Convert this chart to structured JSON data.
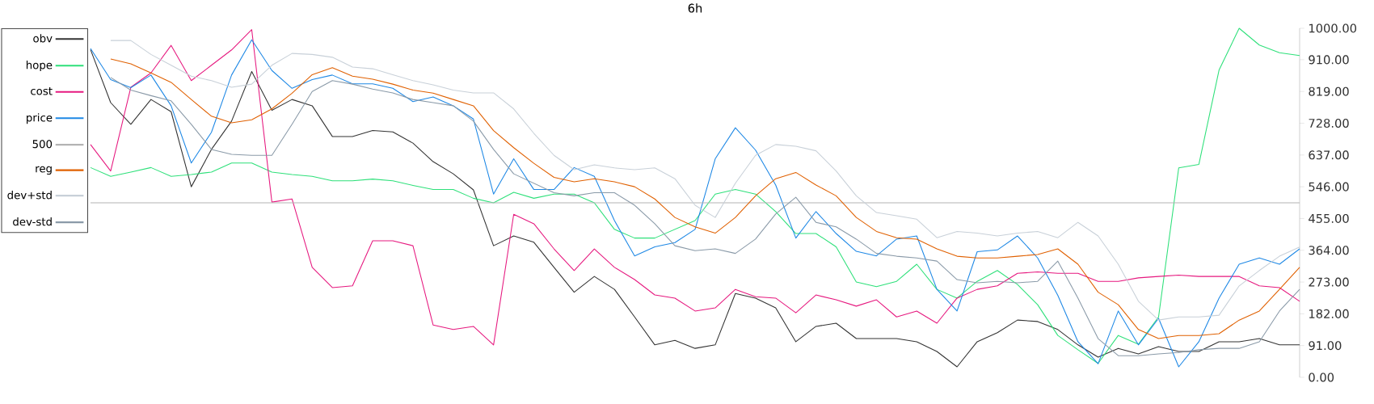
{
  "chart_data": {
    "type": "line",
    "title": "6h",
    "categories": [
      null,
      null,
      null,
      null,
      null,
      null,
      null,
      null,
      null,
      null,
      null,
      null,
      null,
      null,
      null,
      null,
      null,
      null,
      null,
      null,
      null,
      null,
      null,
      null,
      null,
      null,
      null,
      null,
      null,
      null,
      null,
      null,
      null,
      null,
      null,
      null,
      null,
      null,
      null,
      null,
      null,
      null,
      null,
      null,
      null,
      null,
      null,
      null,
      null,
      null,
      null,
      null,
      null,
      null,
      null,
      null,
      null,
      null,
      null,
      null,
      null
    ],
    "series": [
      {
        "name": "obv",
        "color": "#333333",
        "values": [
          939,
          787,
          725,
          796,
          761,
          546,
          653,
          734,
          876,
          765,
          796,
          778,
          690,
          690,
          707,
          703,
          671,
          618,
          583,
          537,
          377,
          405,
          387,
          315,
          244,
          289,
          252,
          173,
          93,
          106,
          83,
          93,
          240,
          227,
          199,
          102,
          146,
          155,
          111,
          111,
          111,
          102,
          74,
          30,
          102,
          128,
          164,
          160,
          137,
          93,
          58,
          83,
          67,
          88,
          74,
          74,
          102,
          102,
          111,
          93,
          93
        ]
      },
      {
        "name": "hope",
        "color": "#2ee07a",
        "values": [
          601,
          576,
          588,
          601,
          576,
          581,
          588,
          614,
          614,
          588,
          581,
          576,
          563,
          563,
          568,
          563,
          550,
          538,
          538,
          513,
          500,
          530,
          513,
          525,
          525,
          500,
          424,
          399,
          399,
          424,
          449,
          525,
          538,
          525,
          475,
          412,
          412,
          374,
          273,
          260,
          275,
          324,
          252,
          227,
          275,
          306,
          266,
          208,
          120,
          79,
          40,
          120,
          95,
          173,
          600,
          610,
          880,
          1000,
          952,
          930,
          922
        ]
      },
      {
        "name": "cost",
        "color": "#e6197f",
        "values": [
          667,
          591,
          831,
          872,
          951,
          850,
          894,
          938,
          996,
          502,
          511,
          315,
          257,
          262,
          391,
          391,
          377,
          150,
          137,
          146,
          93,
          467,
          440,
          368,
          306,
          368,
          315,
          280,
          236,
          227,
          190,
          199,
          252,
          231,
          227,
          185,
          236,
          222,
          204,
          222,
          173,
          190,
          155,
          227,
          252,
          262,
          298,
          302,
          298,
          298,
          275,
          275,
          285,
          289,
          293,
          289,
          289,
          289,
          262,
          257,
          218
        ]
      },
      {
        "name": "price",
        "color": "#1e88e5",
        "values": [
          942,
          853,
          830,
          866,
          778,
          614,
          702,
          866,
          967,
          879,
          828,
          853,
          866,
          841,
          841,
          828,
          790,
          803,
          778,
          740,
          525,
          626,
          538,
          538,
          601,
          576,
          449,
          348,
          374,
          386,
          424,
          626,
          715,
          651,
          551,
          399,
          475,
          412,
          361,
          348,
          396,
          405,
          252,
          190,
          360,
          365,
          405,
          342,
          235,
          102,
          39,
          190,
          93,
          169,
          30,
          102,
          227,
          324,
          342,
          324,
          368
        ]
      },
      {
        "name": "500",
        "color": "#b4b4b4",
        "values": [
          500,
          500,
          500,
          500,
          500,
          500,
          500,
          500,
          500,
          500,
          500,
          500,
          500,
          500,
          500,
          500,
          500,
          500,
          500,
          500,
          500,
          500,
          500,
          500,
          500,
          500,
          500,
          500,
          500,
          500,
          500,
          500,
          500,
          500,
          500,
          500,
          500,
          500,
          500,
          500,
          500,
          500,
          500,
          500,
          500,
          500,
          500,
          500,
          500,
          500,
          500,
          500,
          500,
          500,
          500,
          500,
          500,
          500,
          500,
          500,
          500
        ]
      },
      {
        "name": "reg",
        "color": "#e06000",
        "values": [
          null,
          912,
          898,
          872,
          845,
          796,
          748,
          729,
          738,
          769,
          814,
          867,
          887,
          863,
          854,
          840,
          823,
          814,
          796,
          778,
          707,
          658,
          613,
          573,
          560,
          569,
          560,
          546,
          511,
          458,
          431,
          413,
          458,
          520,
          569,
          587,
          551,
          520,
          458,
          418,
          400,
          396,
          368,
          347,
          342,
          342,
          347,
          352,
          368,
          324,
          244,
          208,
          137,
          111,
          120,
          120,
          125,
          164,
          190,
          252,
          315
        ]
      },
      {
        "name": "dev+std",
        "color": "#c8d0d8",
        "values": [
          null,
          965,
          965,
          925,
          894,
          863,
          850,
          831,
          840,
          894,
          928,
          925,
          917,
          889,
          884,
          867,
          850,
          838,
          823,
          815,
          815,
          769,
          699,
          636,
          595,
          609,
          600,
          595,
          600,
          569,
          493,
          458,
          556,
          636,
          667,
          662,
          649,
          591,
          520,
          472,
          463,
          453,
          400,
          418,
          413,
          405,
          413,
          418,
          400,
          444,
          405,
          324,
          218,
          164,
          173,
          173,
          178,
          262,
          306,
          347,
          373
        ]
      },
      {
        "name": "dev-std",
        "color": "#8a9aa8",
        "values": [
          null,
          859,
          823,
          807,
          792,
          725,
          653,
          639,
          636,
          636,
          725,
          819,
          850,
          840,
          826,
          815,
          796,
          787,
          778,
          734,
          653,
          583,
          556,
          529,
          520,
          529,
          529,
          493,
          440,
          377,
          363,
          368,
          355,
          396,
          468,
          516,
          444,
          431,
          396,
          355,
          347,
          342,
          333,
          280,
          271,
          275,
          271,
          275,
          333,
          227,
          111,
          62,
          62,
          67,
          71,
          79,
          83,
          83,
          102,
          190,
          252
        ]
      }
    ],
    "ylim": [
      0,
      1000
    ],
    "yticks": [
      {
        "value": 0,
        "label": "0.00"
      },
      {
        "value": 91,
        "label": "91.00"
      },
      {
        "value": 182,
        "label": "182.00"
      },
      {
        "value": 273,
        "label": "273.00"
      },
      {
        "value": 364,
        "label": "364.00"
      },
      {
        "value": 455,
        "label": "455.00"
      },
      {
        "value": 546,
        "label": "546.00"
      },
      {
        "value": 637,
        "label": "637.00"
      },
      {
        "value": 728,
        "label": "728.00"
      },
      {
        "value": 819,
        "label": "819.00"
      },
      {
        "value": 910,
        "label": "910.00"
      },
      {
        "value": 1000,
        "label": "1000.00"
      }
    ],
    "tick_labels": "y",
    "legend": "top left",
    "grid": false,
    "marker": "none"
  }
}
